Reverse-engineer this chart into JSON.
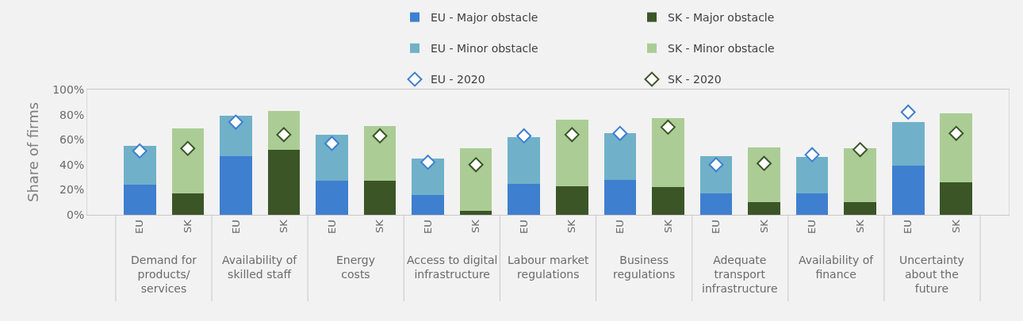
{
  "chart_data": {
    "type": "bar",
    "stacked": true,
    "ylabel": "Share of firms",
    "categories": [
      "EU",
      "SK",
      "EU",
      "SK",
      "EU",
      "SK",
      "EU",
      "SK",
      "EU",
      "SK",
      "EU",
      "SK",
      "EU",
      "SK",
      "EU",
      "SK",
      "EU",
      "SK"
    ],
    "annotations": [
      "Demand for\nproducts/\nservices",
      "Availability of\nskilled staff",
      "Energy\ncosts",
      "Access to digital\ninfrastructure",
      "Labour market\nregulations",
      "Business\nregulations",
      "Adequate\ntransport\ninfrastructure",
      "Availability of\nfinance",
      "Uncertainty\nabout the\nfuture"
    ],
    "ylim": [
      0,
      100
    ],
    "yticks": [
      {
        "value": 0,
        "label": "0%"
      },
      {
        "value": 20,
        "label": "20%"
      },
      {
        "value": 40,
        "label": "40%"
      },
      {
        "value": 60,
        "label": "60%"
      },
      {
        "value": 80,
        "label": "80%"
      },
      {
        "value": 100,
        "label": "100%"
      }
    ],
    "legend": "top",
    "marker": "diamond",
    "series": [
      {
        "name": "EU - Major obstacle",
        "color": "#3f7fcf",
        "values": [
          24,
          null,
          47,
          null,
          27,
          null,
          16,
          null,
          25,
          null,
          28,
          null,
          17,
          null,
          17,
          null,
          39,
          null
        ]
      },
      {
        "name": "EU - Minor obstacle",
        "color": "#70b1c9",
        "values": [
          31,
          null,
          32,
          null,
          37,
          null,
          29,
          null,
          37,
          null,
          37,
          null,
          30,
          null,
          29,
          null,
          35,
          null
        ]
      },
      {
        "name": "SK - Major obstacle",
        "color": "#3b5527",
        "values": [
          null,
          17,
          null,
          52,
          null,
          27,
          null,
          3,
          null,
          23,
          null,
          22,
          null,
          10,
          null,
          10,
          null,
          26
        ]
      },
      {
        "name": "SK - Minor obstacle",
        "color": "#abcd95",
        "values": [
          null,
          52,
          null,
          31,
          null,
          44,
          null,
          50,
          null,
          53,
          null,
          55,
          null,
          44,
          null,
          43,
          null,
          55
        ]
      },
      {
        "name": "EU - 2020",
        "type": "scatter",
        "color": "#3f7fcf",
        "values": [
          51,
          null,
          74,
          null,
          57,
          null,
          42,
          null,
          63,
          null,
          65,
          null,
          40,
          null,
          48,
          null,
          82,
          null
        ]
      },
      {
        "name": "SK - 2020",
        "type": "scatter",
        "color": "#3b5527",
        "values": [
          null,
          53,
          null,
          64,
          null,
          63,
          null,
          40,
          null,
          64,
          null,
          70,
          null,
          41,
          null,
          52,
          null,
          65
        ]
      }
    ]
  }
}
